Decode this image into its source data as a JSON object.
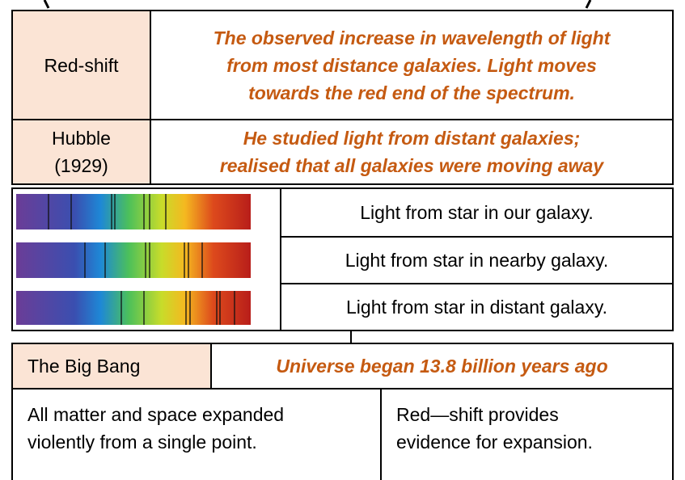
{
  "rows": [
    {
      "term": "Red-shift",
      "definition": [
        "The observed increase in wavelength of light",
        "from most distance galaxies. Light moves",
        "towards the red end of the spectrum."
      ]
    },
    {
      "term": [
        "Hubble",
        "(1929)"
      ],
      "definition": [
        "He studied light from distant galaxies;",
        "realised that all galaxies were moving away"
      ]
    }
  ],
  "spectra": [
    "Light from star in our galaxy.",
    "Light from star in nearby galaxy.",
    "Light from star in distant galaxy."
  ],
  "big_bang": {
    "term": "The Big Bang",
    "definition": "Universe began 13.8 billion years ago",
    "notes": [
      [
        "All matter and space expanded",
        "violently from a single point."
      ],
      [
        "Red—shift provides",
        "evidence for expansion."
      ]
    ]
  }
}
